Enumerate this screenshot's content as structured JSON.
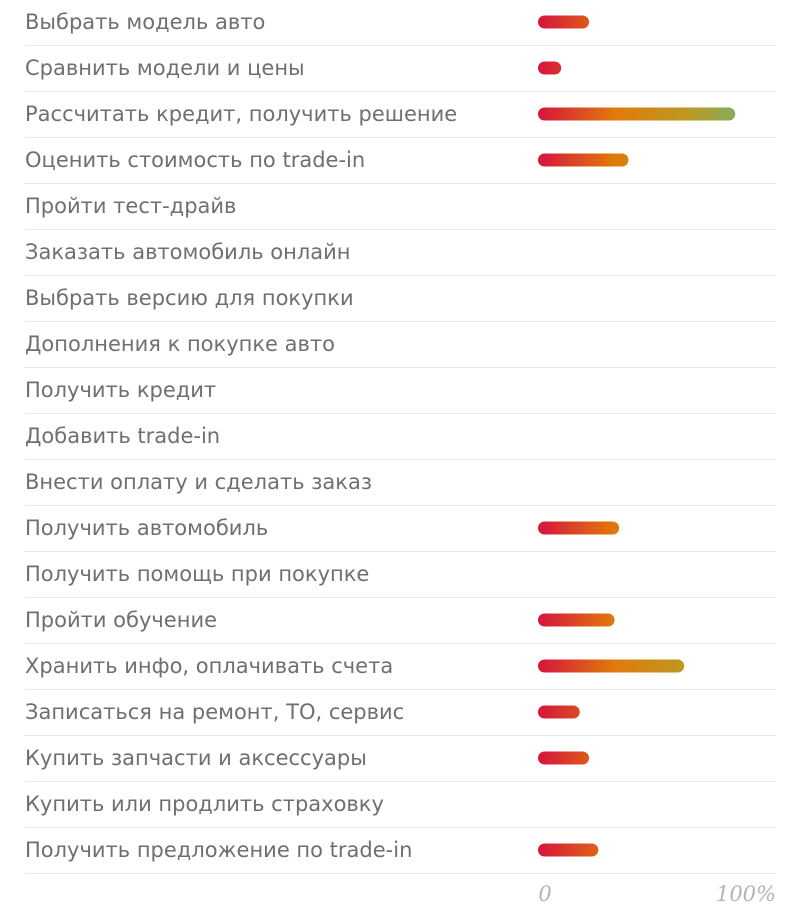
{
  "chart_data": {
    "type": "bar",
    "orientation": "horizontal",
    "categories": [
      "Выбрать модель авто",
      "Сравнить модели и цены",
      "Рассчитать кредит, получить решение",
      "Оценить стоимость по trade-in",
      "Пройти тест-драйв",
      "Заказать автомобиль онлайн",
      "Выбрать версию для покупки",
      "Дополнения к покупке авто",
      "Получить кредит",
      "Добавить trade-in",
      "Внести оплату и сделать заказ",
      "Получить автомобиль",
      "Получить помощь при покупке",
      "Пройти обучение",
      "Хранить инфо, оплачивать счета",
      "Записаться на ремонт, ТО, сервис",
      "Купить запчасти и аксессуары",
      "Купить или продлить страховку",
      "Получить предложение по trade-in"
    ],
    "values": [
      22,
      10,
      85,
      39,
      0,
      0,
      0,
      0,
      0,
      0,
      0,
      35,
      0,
      33,
      63,
      18,
      22,
      0,
      26
    ],
    "xlim": [
      0,
      100
    ],
    "x_ticks": [
      "0",
      "100%"
    ],
    "gradient_colors": [
      "#d6143c",
      "#e07b0a",
      "#b99a25",
      "#58ba8a"
    ],
    "grid": false
  }
}
